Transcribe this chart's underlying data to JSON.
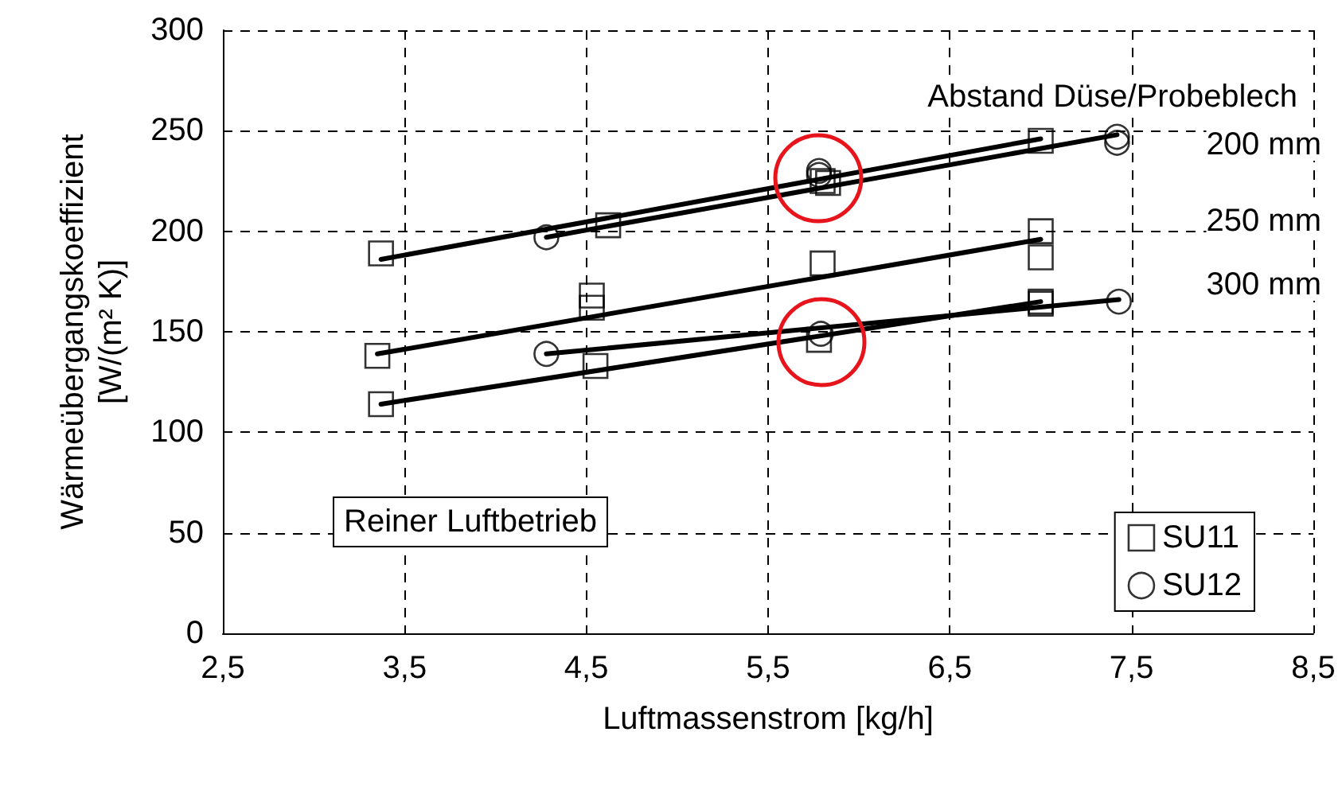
{
  "chart_data": {
    "type": "scatter",
    "xlabel": "Luftmassenstrom [kg/h]",
    "ylabel": "Wärmeübergangskoeffizient\n[W/(m² K)]",
    "xlim": [
      2.5,
      8.5
    ],
    "xticks": [
      {
        "value": 2.5,
        "label": "2,5"
      },
      {
        "value": 3.5,
        "label": "3,5"
      },
      {
        "value": 4.5,
        "label": "4,5"
      },
      {
        "value": 5.5,
        "label": "5,5"
      },
      {
        "value": 6.5,
        "label": "6,5"
      },
      {
        "value": 7.5,
        "label": "7,5"
      },
      {
        "value": 8.5,
        "label": "8,5"
      }
    ],
    "ylim": [
      0,
      300
    ],
    "yticks": [
      0,
      50,
      100,
      150,
      200,
      250,
      300
    ],
    "grid": true,
    "legend": "bottom right",
    "series": [
      {
        "name": "SU11",
        "color": "#000000",
        "marker": "square",
        "x": [
          3.37,
          4.62,
          5.8,
          5.83,
          7.0,
          3.35,
          4.53,
          4.53,
          5.8,
          7.0,
          7.0,
          3.37,
          4.55,
          5.78,
          7.0,
          7.0
        ],
        "values": [
          189,
          203,
          225,
          224,
          245,
          138,
          168,
          162,
          184,
          200,
          187,
          114,
          133,
          146,
          165,
          164
        ]
      },
      {
        "name": "SU12",
        "color": "#000000",
        "marker": "circle",
        "x": [
          4.28,
          5.78,
          5.78,
          7.42,
          7.42,
          4.28,
          5.79,
          7.43
        ],
        "values": [
          197,
          230,
          228,
          247,
          244,
          139,
          149,
          165
        ]
      },
      {
        "type": "line",
        "color": "#000000",
        "marker": "none",
        "x": [
          3.37,
          7.0
        ],
        "values": [
          186,
          246
        ]
      },
      {
        "type": "line",
        "color": "#000000",
        "marker": "none",
        "x": [
          4.28,
          7.42
        ],
        "values": [
          197,
          248
        ]
      },
      {
        "type": "line",
        "color": "#000000",
        "marker": "none",
        "x": [
          3.35,
          7.0
        ],
        "values": [
          139,
          196
        ]
      },
      {
        "type": "line",
        "color": "#000000",
        "marker": "none",
        "x": [
          3.37,
          7.0
        ],
        "values": [
          114,
          165
        ]
      },
      {
        "type": "line",
        "color": "#000000",
        "marker": "none",
        "x": [
          4.28,
          7.43
        ],
        "values": [
          139,
          166
        ]
      }
    ],
    "annotations": [
      "Abstand Düse/Probeblech",
      "Reiner Luftbetrieb",
      "200 mm",
      "250 mm",
      "300 mm"
    ]
  }
}
